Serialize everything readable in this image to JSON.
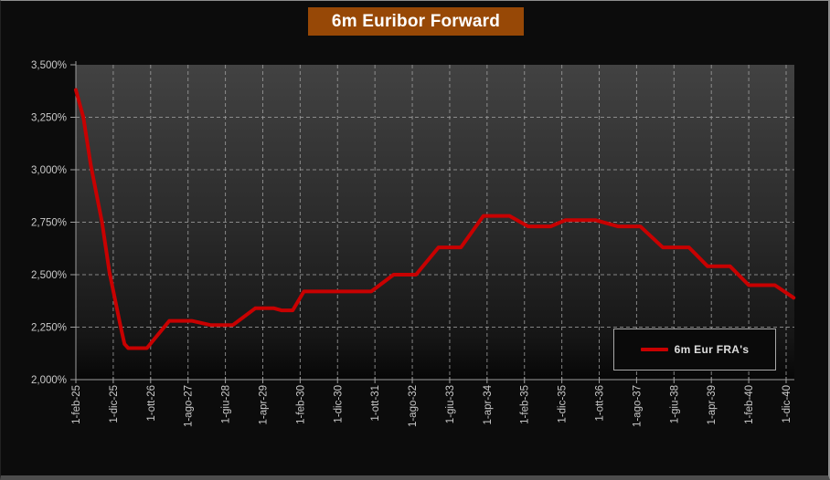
{
  "title": "6m Euribor Forward",
  "legend": {
    "label": "6m Eur FRA's"
  },
  "colors": {
    "page_bg": "#0c0c0c",
    "title_bg": "#974806",
    "title_text": "#ffffff",
    "series": "#c80101",
    "grid": "#a0a0a0",
    "axis": "#9e9e9e",
    "tick_label": "#c9c9c9",
    "plot_gradient_top": "#424242",
    "plot_gradient_mid": "#2b2b2b",
    "plot_gradient_low": "#161616",
    "plot_gradient_bottom": "#070707",
    "legend_bg": "#0a0a0a",
    "legend_border": "#a8a8a8",
    "legend_text": "#dedede"
  },
  "chart_data": {
    "type": "line",
    "title": "6m Euribor Forward",
    "series_name": "6m Eur FRA's",
    "grid": true,
    "legend_position": "inside-bottom-right",
    "ylim": [
      2.0,
      3.5
    ],
    "y_ticks": [
      "3,500%",
      "3,250%",
      "3,000%",
      "2,750%",
      "2,500%",
      "2,250%",
      "2,000%"
    ],
    "y_tick_values": [
      3.5,
      3.25,
      3.0,
      2.75,
      2.5,
      2.25,
      2.0
    ],
    "x_categories": [
      "1-feb-25",
      "1-dic-25",
      "1-ott-26",
      "1-ago-27",
      "1-giu-28",
      "1-apr-29",
      "1-feb-30",
      "1-dic-30",
      "1-ott-31",
      "1-ago-32",
      "1-giu-33",
      "1-apr-34",
      "1-feb-35",
      "1-dic-35",
      "1-ott-36",
      "1-ago-37",
      "1-giu-38",
      "1-apr-39",
      "1-feb-40",
      "1-dic-40"
    ],
    "months_between_labels": 10,
    "points_unit": "[months_from_1-feb-25, forward_rate_percent]",
    "points": [
      [
        0,
        3.38
      ],
      [
        2,
        3.25
      ],
      [
        4,
        3.02
      ],
      [
        7,
        2.75
      ],
      [
        9,
        2.51
      ],
      [
        12,
        2.25
      ],
      [
        13,
        2.17
      ],
      [
        14,
        2.15
      ],
      [
        19,
        2.15
      ],
      [
        25,
        2.28
      ],
      [
        31,
        2.28
      ],
      [
        36,
        2.26
      ],
      [
        42,
        2.26
      ],
      [
        48,
        2.34
      ],
      [
        53,
        2.34
      ],
      [
        55,
        2.33
      ],
      [
        58,
        2.33
      ],
      [
        61,
        2.42
      ],
      [
        79,
        2.42
      ],
      [
        85,
        2.5
      ],
      [
        91,
        2.5
      ],
      [
        97,
        2.63
      ],
      [
        103,
        2.63
      ],
      [
        109,
        2.78
      ],
      [
        116,
        2.78
      ],
      [
        121,
        2.73
      ],
      [
        127,
        2.73
      ],
      [
        131,
        2.76
      ],
      [
        139,
        2.76
      ],
      [
        145,
        2.73
      ],
      [
        151,
        2.73
      ],
      [
        157,
        2.63
      ],
      [
        164,
        2.63
      ],
      [
        169,
        2.54
      ],
      [
        175,
        2.54
      ],
      [
        180,
        2.45
      ],
      [
        187,
        2.45
      ],
      [
        192,
        2.39
      ]
    ]
  }
}
